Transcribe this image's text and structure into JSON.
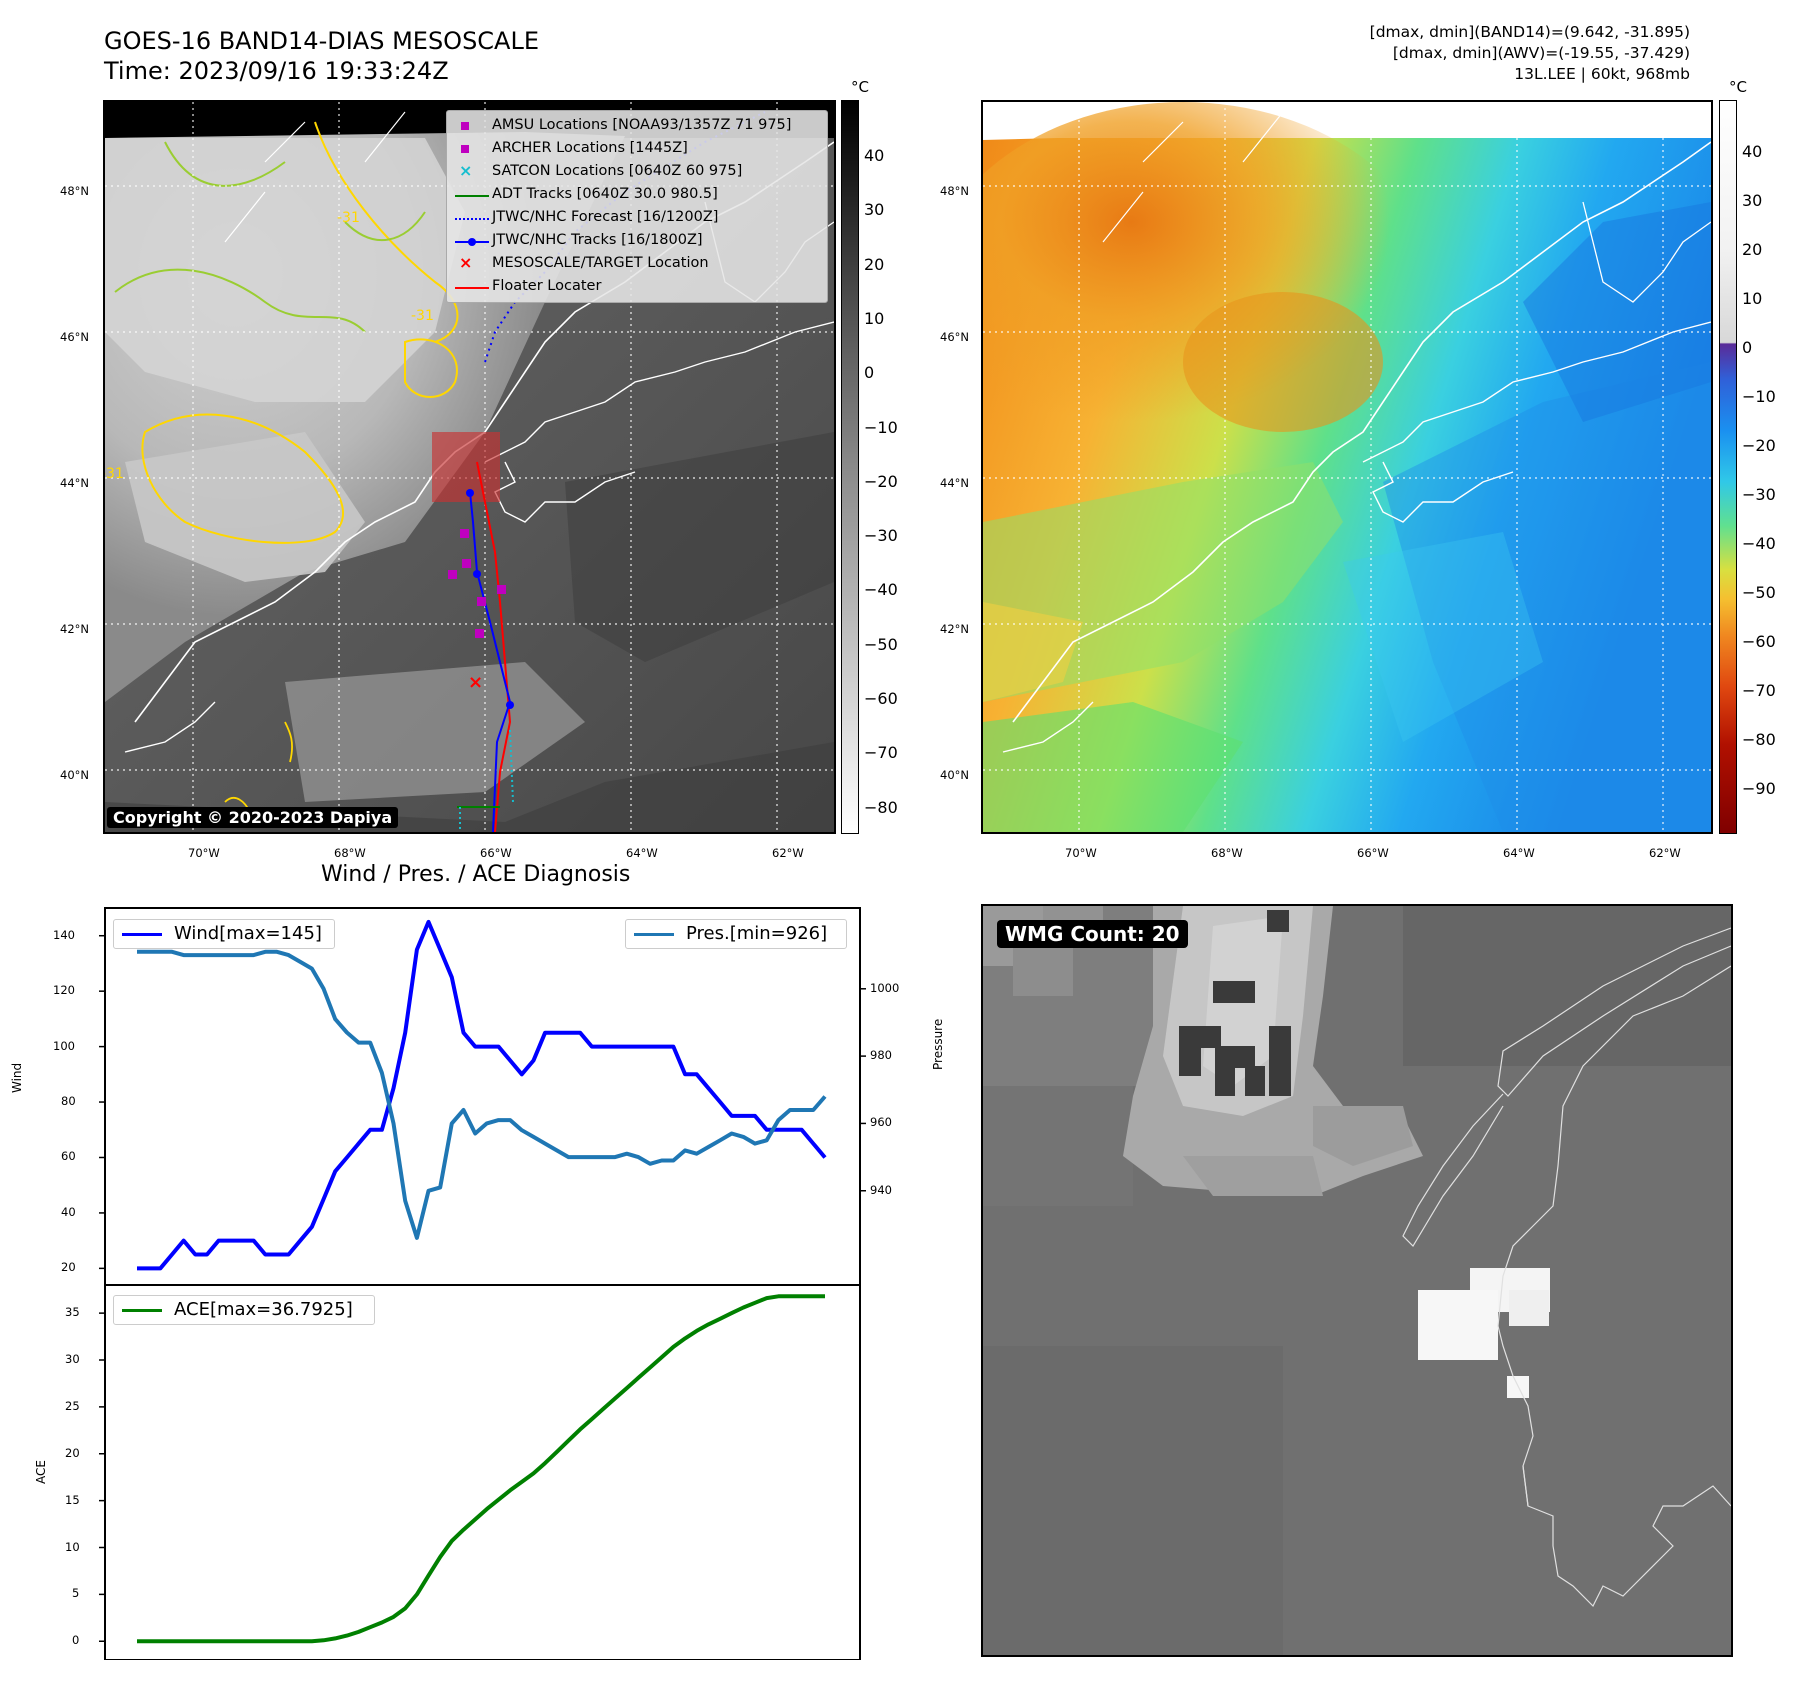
{
  "header": {
    "title_line1": "GOES-16 BAND14-DIAS MESOSCALE",
    "title_line2": "Time: 2023/09/16 19:33:24Z",
    "info_line1": "[dmax, dmin](BAND14)=(9.642, -31.895)",
    "info_line2": "[dmax, dmin](AWV)=(-19.55, -37.429)",
    "info_line3": "13L.LEE | 60kt, 968mb"
  },
  "map_axes": {
    "lat_labels": [
      "48°N",
      "46°N",
      "44°N",
      "42°N",
      "40°N"
    ],
    "lon_labels": [
      "70°W",
      "68°W",
      "66°W",
      "64°W",
      "62°W"
    ]
  },
  "ir_map": {
    "colorbar_unit": "°C",
    "colorbar_ticks": [
      "40",
      "30",
      "20",
      "10",
      "0",
      "−10",
      "−20",
      "−30",
      "−40",
      "−50",
      "−60",
      "−70",
      "−80"
    ],
    "contour_labels": [
      "-31",
      "-31",
      "-31"
    ],
    "copyright": "Copyright © 2020-2023 Dapiya",
    "legend": [
      {
        "label": "AMSU Locations [NOAA93/1357Z 71 975]",
        "marker": "square",
        "color": "#bf00bf"
      },
      {
        "label": "ARCHER Locations [1445Z]",
        "marker": "square",
        "color": "#bf00bf"
      },
      {
        "label": "SATCON Locations [0640Z 60 975]",
        "marker": "x",
        "color": "#17becf"
      },
      {
        "label": "ADT Tracks [0640Z 30.0 980.5]",
        "marker": "line",
        "color": "#008000"
      },
      {
        "label": "JTWC/NHC Forecast [16/1200Z]",
        "marker": "dotted",
        "color": "#0000ff"
      },
      {
        "label": "JTWC/NHC Tracks [16/1800Z]",
        "marker": "line-dot",
        "color": "#0000ff"
      },
      {
        "label": "MESOSCALE/TARGET Location",
        "marker": "x",
        "color": "#ff0000"
      },
      {
        "label": "Floater Locater",
        "marker": "line",
        "color": "#ff0000"
      }
    ]
  },
  "wv_map": {
    "colorbar_unit": "°C",
    "colorbar_ticks": [
      "40",
      "30",
      "20",
      "10",
      "0",
      "−10",
      "−20",
      "−30",
      "−40",
      "−50",
      "−60",
      "−70",
      "−80",
      "−90"
    ]
  },
  "diagnosis": {
    "title": "Wind / Pres. / ACE Diagnosis",
    "wind_ylabel": "Wind",
    "pres_ylabel": "Pressure",
    "ace_ylabel": "ACE",
    "wind_legend": "Wind[max=145]",
    "pres_legend": "Pres.[min=926]",
    "ace_legend": "ACE[max=36.7925]",
    "wind_ticks": [
      "140",
      "120",
      "100",
      "80",
      "60",
      "40",
      "20"
    ],
    "pres_ticks": [
      "1000",
      "980",
      "960",
      "940"
    ],
    "ace_ticks": [
      "35",
      "30",
      "25",
      "20",
      "15",
      "10",
      "5",
      "0"
    ]
  },
  "wmg": {
    "label": "WMG Count: 20"
  },
  "colors": {
    "wind": "#0000ff",
    "pressure": "#1f77b4",
    "ace": "#008000",
    "floater": "#ff0000"
  },
  "chart_data": [
    {
      "type": "line",
      "title": "Wind / Pres. / ACE Diagnosis",
      "ylabel": "Wind",
      "ylim": [
        14,
        150
      ],
      "series": [
        {
          "name": "Wind[max=145]",
          "values": [
            20,
            20,
            20,
            25,
            30,
            25,
            25,
            30,
            30,
            30,
            30,
            25,
            25,
            25,
            30,
            35,
            45,
            55,
            60,
            65,
            70,
            70,
            85,
            105,
            135,
            145,
            135,
            125,
            105,
            100,
            100,
            100,
            95,
            90,
            95,
            105,
            105,
            105,
            105,
            100,
            100,
            100,
            100,
            100,
            100,
            100,
            100,
            90,
            90,
            85,
            80,
            75,
            75,
            75,
            70,
            70,
            70,
            70,
            65,
            60
          ]
        }
      ]
    },
    {
      "type": "line",
      "ylabel": "Pressure",
      "ylim": [
        912,
        1024
      ],
      "series": [
        {
          "name": "Pres.[min=926]",
          "values": [
            1011,
            1011,
            1011,
            1011,
            1010,
            1010,
            1010,
            1010,
            1010,
            1010,
            1010,
            1011,
            1011,
            1010,
            1008,
            1006,
            1000,
            991,
            987,
            984,
            984,
            975,
            960,
            937,
            926,
            940,
            941,
            960,
            964,
            957,
            960,
            961,
            961,
            958,
            956,
            954,
            952,
            950,
            950,
            950,
            950,
            950,
            951,
            950,
            948,
            949,
            949,
            952,
            951,
            953,
            955,
            957,
            956,
            954,
            955,
            961,
            964,
            964,
            964,
            968
          ]
        }
      ]
    },
    {
      "type": "area",
      "ylabel": "ACE",
      "ylim": [
        -2,
        38
      ],
      "series": [
        {
          "name": "ACE[max=36.7925]",
          "values": [
            0,
            0,
            0,
            0,
            0,
            0,
            0,
            0,
            0,
            0,
            0,
            0,
            0,
            0,
            0,
            0,
            0.1,
            0.3,
            0.6,
            1.0,
            1.5,
            2.0,
            2.6,
            3.5,
            5.0,
            7.0,
            9.0,
            10.7,
            11.9,
            13.0,
            14.1,
            15.1,
            16.1,
            17.0,
            17.9,
            19.0,
            20.2,
            21.4,
            22.6,
            23.7,
            24.8,
            25.9,
            27.0,
            28.1,
            29.2,
            30.3,
            31.4,
            32.3,
            33.1,
            33.8,
            34.4,
            35.0,
            35.6,
            36.1,
            36.6,
            36.79,
            36.79,
            36.79,
            36.79,
            36.79
          ]
        }
      ]
    }
  ]
}
